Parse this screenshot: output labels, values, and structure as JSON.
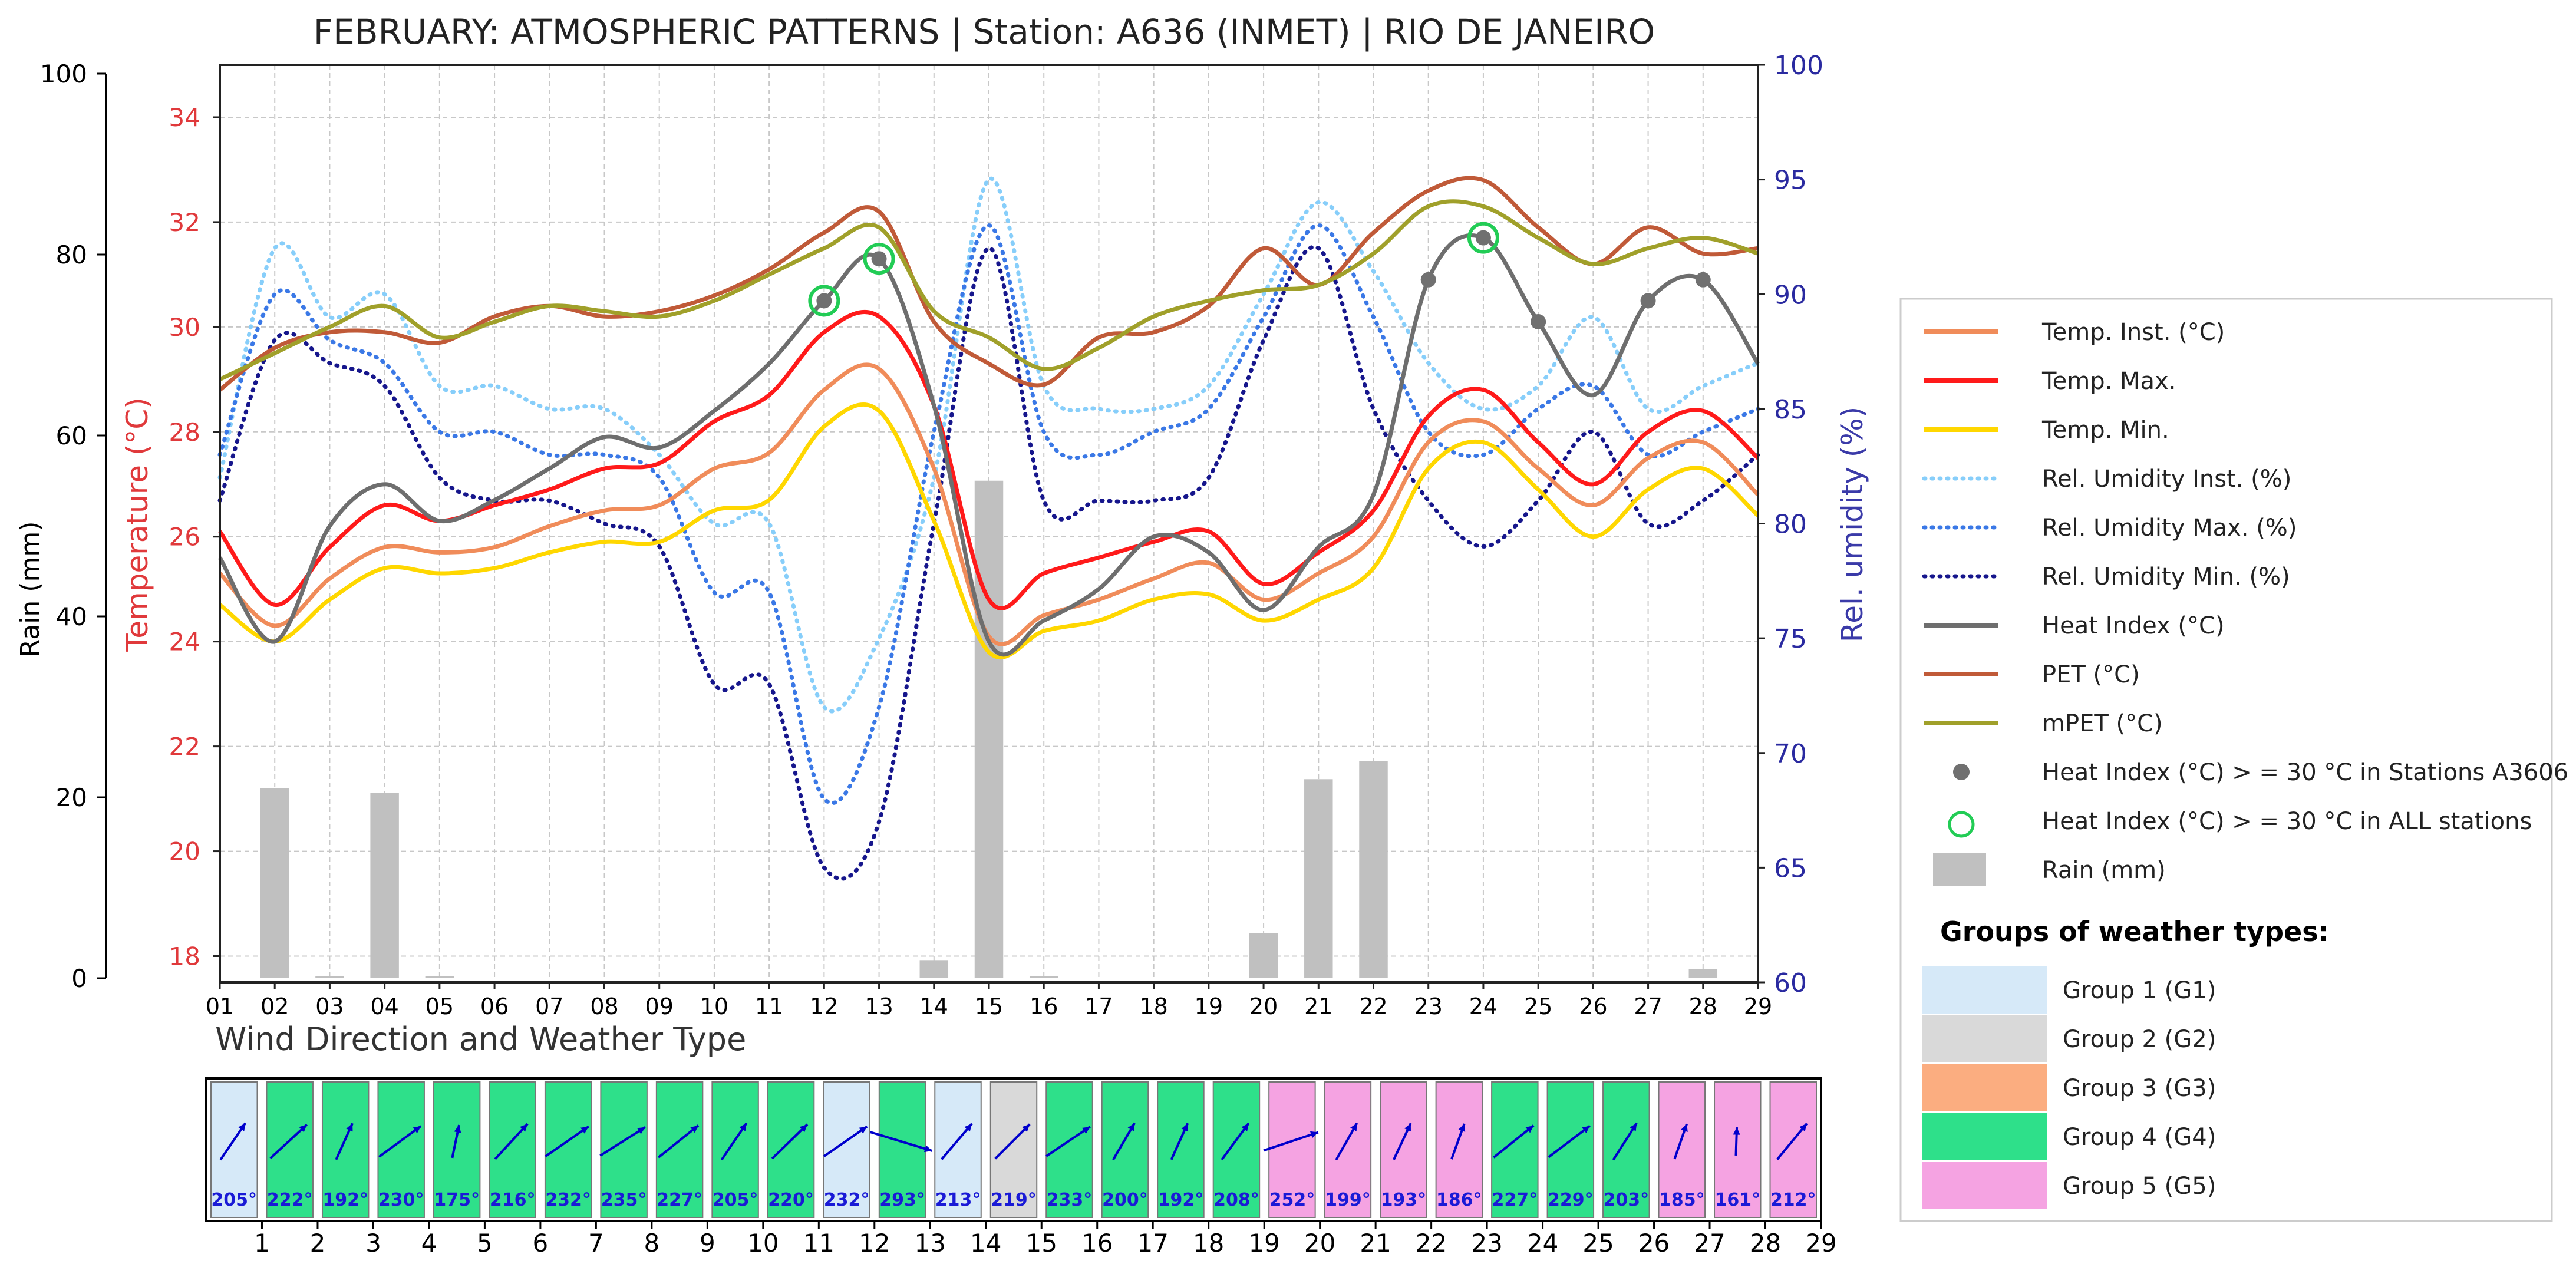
{
  "chart_data": {
    "type": "line",
    "title": "FEBRUARY: ATMOSPHERIC PATTERNS | Station: A636 (INMET) | RIO DE JANEIRO",
    "x": [
      "01",
      "02",
      "03",
      "04",
      "05",
      "06",
      "07",
      "08",
      "09",
      "10",
      "11",
      "12",
      "13",
      "14",
      "15",
      "16",
      "17",
      "18",
      "19",
      "20",
      "21",
      "22",
      "23",
      "24",
      "25",
      "26",
      "27",
      "28",
      "29"
    ],
    "rain_axis": {
      "label": "Rain (mm)",
      "ticks": [
        "0",
        "20",
        "40",
        "60",
        "80",
        "100"
      ],
      "ylim": [
        0,
        100
      ]
    },
    "temp_axis": {
      "label": "Temperature (°C)",
      "ticks": [
        "18",
        "20",
        "22",
        "24",
        "26",
        "28",
        "30",
        "32",
        "34"
      ],
      "ylim": [
        17.5,
        35.0
      ]
    },
    "rh_axis": {
      "label": "Rel. umidity (%)",
      "ticks": [
        "60",
        "65",
        "70",
        "75",
        "80",
        "85",
        "90",
        "95",
        "100"
      ],
      "ylim": [
        60,
        100
      ]
    },
    "temp_series": [
      {
        "name": "Temp. Inst. (°C)",
        "color": "#f08c5a",
        "style": "solid",
        "values": [
          25.3,
          24.3,
          25.2,
          25.8,
          25.7,
          25.8,
          26.2,
          26.5,
          26.6,
          27.3,
          27.6,
          28.8,
          29.2,
          27.3,
          24.1,
          24.5,
          24.8,
          25.2,
          25.5,
          24.8,
          25.3,
          26.0,
          27.8,
          28.2,
          27.3,
          26.6,
          27.5,
          27.8,
          26.8
        ]
      },
      {
        "name": "Temp. Max. (°C)",
        "color": "#ff1a1a",
        "style": "solid",
        "values": [
          26.1,
          24.7,
          25.8,
          26.6,
          26.3,
          26.6,
          26.9,
          27.3,
          27.4,
          28.2,
          28.7,
          29.9,
          30.2,
          28.5,
          24.8,
          25.3,
          25.6,
          25.9,
          26.1,
          25.1,
          25.7,
          26.5,
          28.3,
          28.8,
          27.8,
          27.0,
          28.0,
          28.4,
          27.5
        ]
      },
      {
        "name": "Temp. Min. (°C)",
        "color": "#ffd700",
        "style": "solid",
        "values": [
          24.7,
          24.0,
          24.8,
          25.4,
          25.3,
          25.4,
          25.7,
          25.9,
          25.9,
          26.5,
          26.7,
          28.1,
          28.4,
          26.3,
          23.8,
          24.2,
          24.4,
          24.8,
          24.9,
          24.4,
          24.8,
          25.4,
          27.3,
          27.8,
          26.9,
          26.0,
          26.9,
          27.3,
          26.4
        ]
      },
      {
        "name": "Heat Index (°C)",
        "color": "#6e6e6e",
        "style": "solid",
        "values": [
          25.6,
          24.0,
          26.2,
          27.0,
          26.3,
          26.7,
          27.3,
          27.9,
          27.7,
          28.4,
          29.3,
          30.5,
          31.3,
          28.5,
          24.0,
          24.4,
          25.0,
          26.0,
          25.7,
          24.6,
          25.8,
          26.8,
          30.9,
          31.7,
          30.1,
          28.7,
          30.5,
          30.9,
          29.3
        ]
      },
      {
        "name": "PET (°C)",
        "color": "#c05a38",
        "style": "solid",
        "values": [
          28.8,
          29.6,
          29.9,
          29.9,
          29.7,
          30.2,
          30.4,
          30.2,
          30.3,
          30.6,
          31.1,
          31.8,
          32.2,
          30.1,
          29.3,
          28.9,
          29.8,
          29.9,
          30.4,
          31.5,
          30.8,
          31.8,
          32.6,
          32.8,
          31.9,
          31.2,
          31.9,
          31.4,
          31.5
        ]
      },
      {
        "name": "mPET  (°C)",
        "color": "#a0a02a",
        "style": "solid",
        "values": [
          29.0,
          29.5,
          30.0,
          30.4,
          29.8,
          30.1,
          30.4,
          30.3,
          30.2,
          30.5,
          31.0,
          31.5,
          31.9,
          30.3,
          29.8,
          29.2,
          29.6,
          30.2,
          30.5,
          30.7,
          30.8,
          31.4,
          32.3,
          32.3,
          31.7,
          31.2,
          31.5,
          31.7,
          31.4
        ]
      }
    ],
    "rh_series": [
      {
        "name": "Rel. Umidity Inst. (%)",
        "color": "#87cefa",
        "style": "dotted",
        "values": [
          82,
          92,
          89,
          90,
          86,
          86,
          85,
          85,
          83,
          80,
          80,
          72,
          75,
          82,
          95,
          86,
          85,
          85,
          86,
          90,
          94,
          91,
          87,
          85,
          86,
          89,
          85,
          86,
          87
        ]
      },
      {
        "name": "Rel. Umidity Max. (%)",
        "color": "#3a78e6",
        "style": "dotted",
        "values": [
          83,
          90,
          88,
          87,
          84,
          84,
          83,
          83,
          82,
          77,
          77,
          68,
          72,
          84,
          93,
          84,
          83,
          84,
          85,
          89,
          93,
          89,
          84,
          83,
          85,
          86,
          83,
          84,
          85
        ]
      },
      {
        "name": "Rel. Umidity Min. (%)",
        "color": "#16168c",
        "style": "dotted",
        "values": [
          81,
          88,
          87,
          86,
          82,
          81,
          81,
          80,
          79,
          73,
          73,
          65,
          67,
          80,
          92,
          81,
          81,
          81,
          82,
          88,
          92,
          85,
          81,
          79,
          81,
          84,
          80,
          81,
          83
        ]
      }
    ],
    "rain": {
      "name": "Rain (mm)",
      "color": "#c0c0c0",
      "values": [
        0,
        21,
        0.2,
        20.5,
        0.2,
        0,
        0,
        0,
        0,
        0,
        0,
        0,
        0,
        2,
        55,
        0.2,
        0,
        0,
        0,
        5,
        22,
        24,
        0,
        0,
        0,
        0,
        0,
        1,
        0
      ]
    },
    "markers": [
      {
        "name": "Heat Index (°C) > = 30 °C in Stations A3606",
        "x": [
          "12",
          "13",
          "23",
          "24",
          "25",
          "27",
          "28"
        ]
      },
      {
        "name": "Heat Index (°C) > = 30 °C in ALL stations",
        "x": [
          "12",
          "13",
          "24"
        ]
      }
    ],
    "legend": {
      "placement": "right",
      "entries": [
        {
          "label": "Temp. Inst. (°C)",
          "kind": "line",
          "color": "#f08c5a"
        },
        {
          "label": "Temp. Max.",
          "kind": "line",
          "color": "#ff1a1a"
        },
        {
          "label": "Temp. Min.",
          "kind": "line",
          "color": "#ffd700"
        },
        {
          "label": "Rel. Umidity Inst. (%)",
          "kind": "dotted",
          "color": "#87cefa"
        },
        {
          "label": "Rel. Umidity Max. (%)",
          "kind": "dotted",
          "color": "#3a78e6"
        },
        {
          "label": "Rel. Umidity Min. (%)",
          "kind": "dotted",
          "color": "#16168c"
        },
        {
          "label": "Heat Index (°C)",
          "kind": "line",
          "color": "#6e6e6e"
        },
        {
          "label": "PET (°C)",
          "kind": "line",
          "color": "#c05a38"
        },
        {
          "label": "mPET  (°C)",
          "kind": "line",
          "color": "#a0a02a"
        },
        {
          "label": "Heat Index (°C) > = 30 °C in Stations A3606",
          "kind": "dot",
          "color": "#707070"
        },
        {
          "label": "Heat Index (°C) > = 30 °C in ALL stations",
          "kind": "ring",
          "color": "#22cc55"
        },
        {
          "label": "Rain (mm)",
          "kind": "box",
          "color": "#c0c0c0"
        }
      ],
      "groups_title": "Groups of weather types:",
      "groups": [
        {
          "label": "Group 1 (G1)",
          "color": "#d6e9f8"
        },
        {
          "label": "Group 2 (G2)",
          "color": "#d9d9d9"
        },
        {
          "label": "Group 3 (G3)",
          "color": "#fbad80"
        },
        {
          "label": "Group 4 (G4)",
          "color": "#2ee08a"
        },
        {
          "label": "Group 5 (G5)",
          "color": "#f5a3e2"
        }
      ]
    },
    "wind": {
      "title": "Wind Direction and Weather Type",
      "axis_ticks": [
        "1",
        "2",
        "3",
        "4",
        "5",
        "6",
        "7",
        "8",
        "9",
        "10",
        "11",
        "12",
        "13",
        "14",
        "15",
        "16",
        "17",
        "18",
        "19",
        "20",
        "21",
        "22",
        "23",
        "24",
        "25",
        "26",
        "27",
        "28",
        "29"
      ],
      "directions": [
        205,
        222,
        192,
        230,
        175,
        216,
        232,
        235,
        227,
        205,
        220,
        232,
        293,
        213,
        219,
        233,
        200,
        192,
        208,
        252,
        199,
        193,
        186,
        227,
        229,
        203,
        185,
        161,
        212
      ],
      "direction_labels": [
        "205°",
        "222°",
        "192°",
        "230°",
        "175°",
        "216°",
        "232°",
        "235°",
        "227°",
        "205°",
        "220°",
        "232°",
        "293°",
        "213°",
        "219°",
        "233°",
        "200°",
        "192°",
        "208°",
        "252°",
        "199°",
        "193°",
        "186°",
        "227°",
        "229°",
        "203°",
        "185°",
        "161°",
        "212°"
      ],
      "groups": [
        1,
        4,
        4,
        4,
        4,
        4,
        4,
        4,
        4,
        4,
        4,
        1,
        4,
        1,
        2,
        4,
        4,
        4,
        4,
        5,
        5,
        5,
        5,
        4,
        4,
        4,
        5,
        5,
        5
      ]
    }
  }
}
